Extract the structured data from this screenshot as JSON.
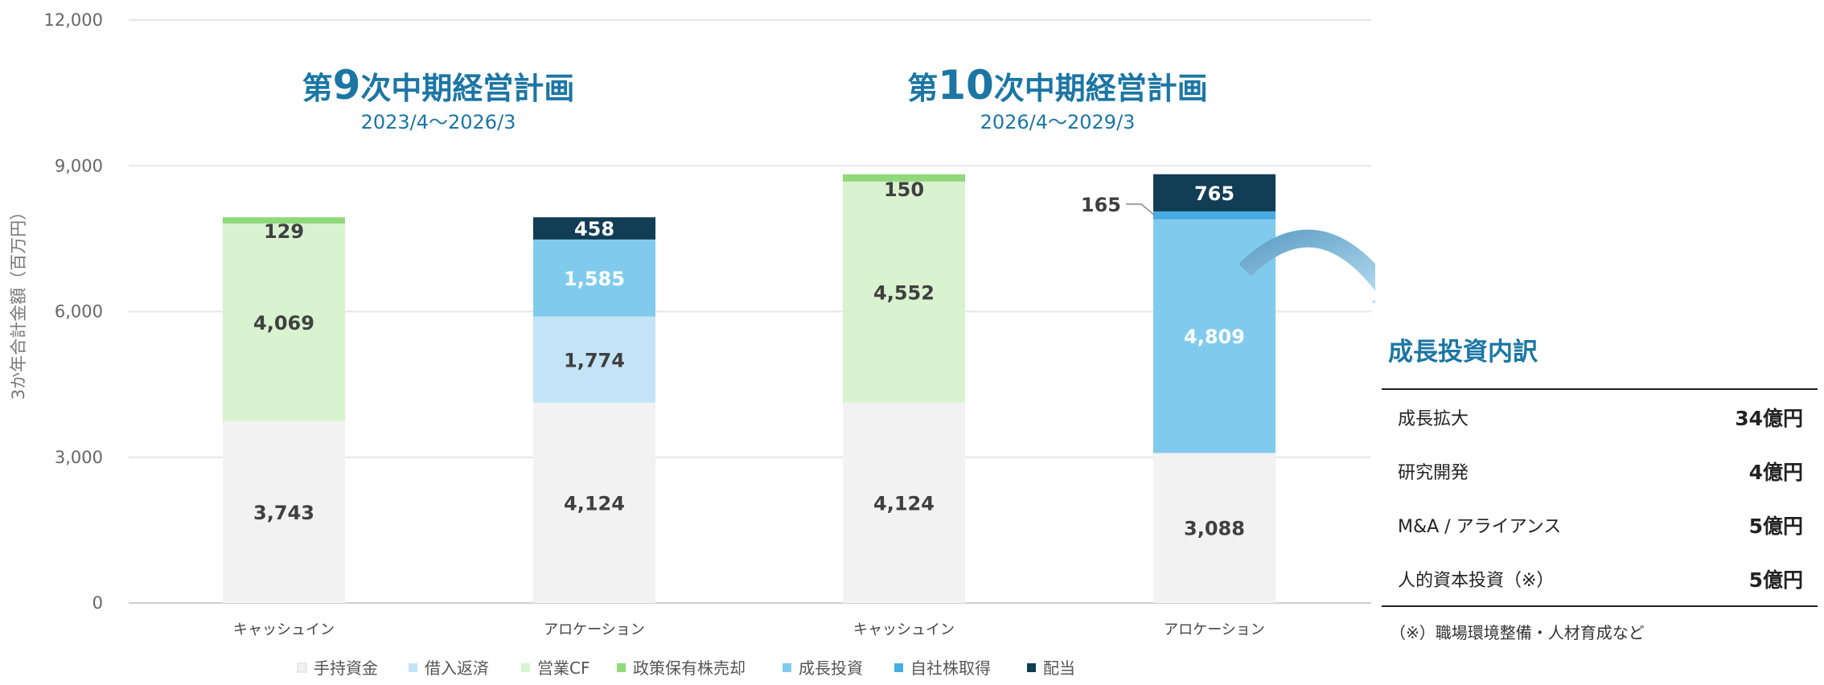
{
  "chart_data": {
    "type": "bar",
    "stacked": true,
    "categories": [
      "キャッシュイン",
      "アロケーション",
      "キャッシュイン",
      "アロケーション"
    ],
    "series": [
      {
        "name": "手持資金",
        "color": "#f2f2f2",
        "label_color": "#404040",
        "values": [
          3743,
          4124,
          4124,
          3088
        ]
      },
      {
        "name": "借入返済",
        "color": "#c3e4f6",
        "label_color": "#404040",
        "values": [
          0,
          1774,
          0,
          0
        ]
      },
      {
        "name": "営業CF",
        "color": "#d9f2d0",
        "label_color": "#404040",
        "values": [
          4069,
          0,
          4552,
          0
        ]
      },
      {
        "name": "政策保有株売却",
        "color": "#8fd97a",
        "label_color": "#404040",
        "values": [
          129,
          0,
          150,
          0
        ]
      },
      {
        "name": "成長投資",
        "color": "#80cbed",
        "label_color": "#ffffff",
        "values": [
          0,
          1585,
          0,
          4809
        ]
      },
      {
        "name": "自社株取得",
        "color": "#46ace3",
        "label_color": "#ffffff",
        "values": [
          0,
          0,
          0,
          165
        ]
      },
      {
        "name": "配当",
        "color": "#113d55",
        "label_color": "#ffffff",
        "values": [
          0,
          458,
          0,
          765
        ]
      }
    ],
    "data_labels": [
      [
        "3,743",
        "",
        "4,069",
        "129",
        "",
        "",
        ""
      ],
      [
        "4,124",
        "1,774",
        "",
        "",
        "1,585",
        "",
        "458"
      ],
      [
        "4,124",
        "",
        "4,552",
        "150",
        "",
        "",
        ""
      ],
      [
        "3,088",
        "",
        "",
        "",
        "4,809",
        "165",
        "765"
      ]
    ],
    "ylabel": "3か年合計金額（百万円）",
    "ylim": [
      0,
      12000
    ],
    "yticks": [
      0,
      3000,
      6000,
      9000,
      12000
    ],
    "ytick_labels": [
      "0",
      "3,000",
      "6,000",
      "9,000",
      "12,000"
    ],
    "grid": true,
    "legend_position": "bottom"
  },
  "plans": [
    {
      "prefix": "第",
      "number": "9",
      "suffix": "次中期経営計画",
      "period": "2023/4～2026/3"
    },
    {
      "prefix": "第",
      "number": "10",
      "suffix": "次中期経営計画",
      "period": "2026/4～2029/3"
    }
  ],
  "breakdown": {
    "title": "成長投資内訳",
    "items": [
      {
        "label": "成長拡大",
        "amount": "34億円"
      },
      {
        "label": "研究開発",
        "amount": "4億円"
      },
      {
        "label": "M&A / アライアンス",
        "amount": "5億円"
      },
      {
        "label": "人的資本投資（※）",
        "amount": "5億円"
      }
    ],
    "note": "（※）職場環境整備・人材育成など"
  }
}
